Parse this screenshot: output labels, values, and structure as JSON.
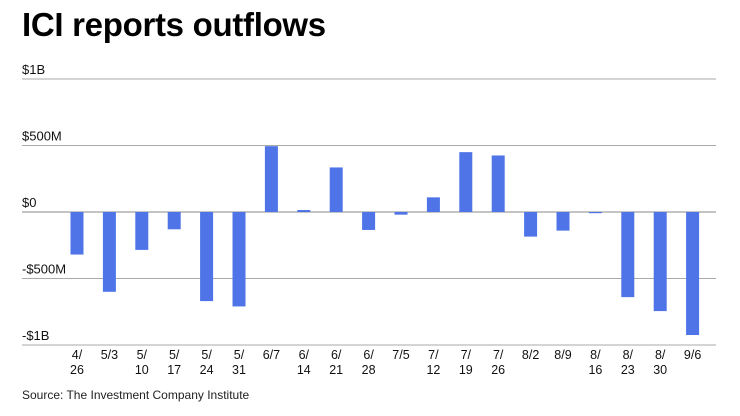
{
  "chart_data": {
    "type": "bar",
    "title": "ICI reports outflows",
    "source": "Source: The Investment Company Institute",
    "unit": "millions USD",
    "categories": [
      "4/26",
      "5/3",
      "5/10",
      "5/17",
      "5/24",
      "5/31",
      "6/7",
      "6/14",
      "6/21",
      "6/28",
      "7/5",
      "7/12",
      "7/19",
      "7/26",
      "8/2",
      "8/9",
      "8/16",
      "8/23",
      "8/30",
      "9/6"
    ],
    "category_labels": [
      [
        "4/",
        "26"
      ],
      [
        "5/3",
        ""
      ],
      [
        "5/",
        "10"
      ],
      [
        "5/",
        "17"
      ],
      [
        "5/",
        "24"
      ],
      [
        "5/",
        "31"
      ],
      [
        "6/7",
        ""
      ],
      [
        "6/",
        "14"
      ],
      [
        "6/",
        "21"
      ],
      [
        "6/",
        "28"
      ],
      [
        "7/5",
        ""
      ],
      [
        "7/",
        "12"
      ],
      [
        "7/",
        "19"
      ],
      [
        "7/",
        "26"
      ],
      [
        "8/2",
        ""
      ],
      [
        "8/9",
        ""
      ],
      [
        "8/",
        "16"
      ],
      [
        "8/",
        "23"
      ],
      [
        "8/",
        "30"
      ],
      [
        "9/6",
        ""
      ]
    ],
    "values": [
      -320,
      -600,
      -285,
      -130,
      -670,
      -710,
      495,
      15,
      335,
      -135,
      -20,
      110,
      450,
      425,
      -185,
      -140,
      -5,
      -640,
      -745,
      -925
    ],
    "ylim": [
      -1000,
      1000
    ],
    "yticks": [
      1000,
      500,
      0,
      -500,
      -1000
    ],
    "ytick_labels": [
      "$1B",
      "$500M",
      "$0",
      "-$500M",
      "-$1B"
    ],
    "xlabel": "",
    "ylabel": "",
    "grid": true,
    "bar_color": "#4e74e8",
    "grid_color": "#aaaaaa"
  }
}
